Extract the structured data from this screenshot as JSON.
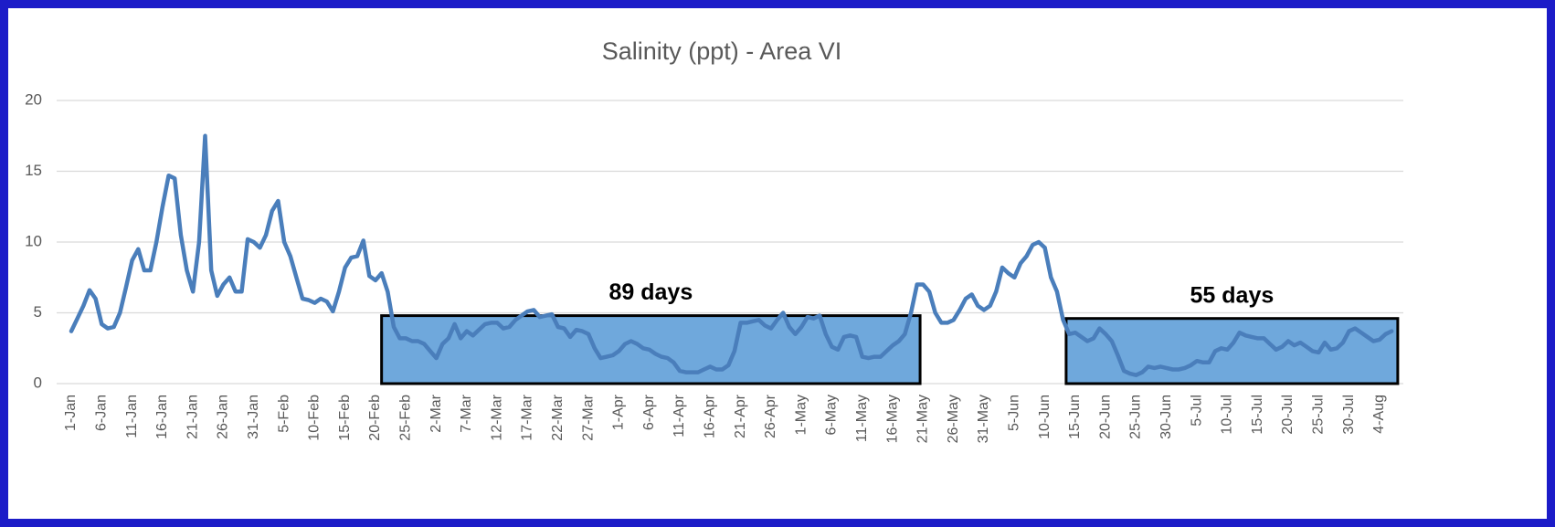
{
  "chart_data": {
    "type": "line",
    "title": "Salinity (ppt) - Area VI",
    "categories": [
      "1-Jan",
      null,
      null,
      null,
      null,
      "6-Jan",
      null,
      null,
      null,
      null,
      "11-Jan",
      null,
      null,
      null,
      null,
      "16-Jan",
      null,
      null,
      null,
      null,
      "21-Jan",
      null,
      null,
      null,
      null,
      "26-Jan",
      null,
      null,
      null,
      null,
      "31-Jan",
      null,
      null,
      null,
      null,
      "5-Feb",
      null,
      null,
      null,
      null,
      "10-Feb",
      null,
      null,
      null,
      null,
      "15-Feb",
      null,
      null,
      null,
      null,
      "20-Feb",
      null,
      null,
      null,
      null,
      "25-Feb",
      null,
      null,
      null,
      null,
      "2-Mar",
      null,
      null,
      null,
      null,
      "7-Mar",
      null,
      null,
      null,
      null,
      "12-Mar",
      null,
      null,
      null,
      null,
      "17-Mar",
      null,
      null,
      null,
      null,
      "22-Mar",
      null,
      null,
      null,
      null,
      "27-Mar",
      null,
      null,
      null,
      null,
      "1-Apr",
      null,
      null,
      null,
      null,
      "6-Apr",
      null,
      null,
      null,
      null,
      "11-Apr",
      null,
      null,
      null,
      null,
      "16-Apr",
      null,
      null,
      null,
      null,
      "21-Apr",
      null,
      null,
      null,
      null,
      "26-Apr",
      null,
      null,
      null,
      null,
      "1-May",
      null,
      null,
      null,
      null,
      "6-May",
      null,
      null,
      null,
      null,
      "11-May",
      null,
      null,
      null,
      null,
      "16-May",
      null,
      null,
      null,
      null,
      "21-May",
      null,
      null,
      null,
      null,
      "26-May",
      null,
      null,
      null,
      null,
      "31-May",
      null,
      null,
      null,
      null,
      "5-Jun",
      null,
      null,
      null,
      null,
      "10-Jun",
      null,
      null,
      null,
      null,
      "15-Jun",
      null,
      null,
      null,
      null,
      "20-Jun",
      null,
      null,
      null,
      null,
      "25-Jun",
      null,
      null,
      null,
      null,
      "30-Jun",
      null,
      null,
      null,
      null,
      "5-Jul",
      null,
      null,
      null,
      null,
      "10-Jul",
      null,
      null,
      null,
      null,
      "15-Jul",
      null,
      null,
      null,
      null,
      "20-Jul",
      null,
      null,
      null,
      null,
      "25-Jul",
      null,
      null,
      null,
      null,
      "30-Jul",
      null,
      null,
      null,
      null,
      "4-Aug",
      null,
      null
    ],
    "values": [
      3.7,
      4.6,
      5.5,
      6.6,
      6.0,
      4.2,
      3.9,
      4.0,
      5.0,
      6.8,
      8.7,
      9.5,
      8.0,
      8.0,
      10.0,
      12.5,
      14.7,
      14.5,
      10.5,
      8.0,
      6.5,
      10.0,
      17.5,
      8.0,
      6.2,
      7.0,
      7.5,
      6.5,
      6.5,
      10.2,
      10.0,
      9.6,
      10.5,
      12.2,
      12.9,
      10.0,
      9.0,
      7.5,
      6.0,
      5.9,
      5.7,
      6.0,
      5.8,
      5.1,
      6.5,
      8.2,
      8.9,
      9.0,
      10.1,
      7.6,
      7.3,
      7.8,
      6.5,
      4.0,
      3.2,
      3.2,
      3.0,
      3.0,
      2.8,
      2.3,
      1.8,
      2.8,
      3.2,
      4.2,
      3.2,
      3.7,
      3.4,
      3.8,
      4.2,
      4.3,
      4.3,
      3.9,
      4.0,
      4.5,
      4.8,
      5.1,
      5.2,
      4.7,
      4.8,
      4.9,
      4.0,
      3.9,
      3.3,
      3.8,
      3.7,
      3.5,
      2.5,
      1.8,
      1.9,
      2.0,
      2.3,
      2.8,
      3.0,
      2.8,
      2.5,
      2.4,
      2.1,
      1.9,
      1.8,
      1.5,
      0.9,
      0.8,
      0.8,
      0.8,
      1.0,
      1.2,
      1.0,
      1.0,
      1.3,
      2.3,
      4.3,
      4.3,
      4.4,
      4.5,
      4.1,
      3.9,
      4.5,
      5.0,
      4.0,
      3.5,
      4.0,
      4.7,
      4.6,
      4.8,
      3.5,
      2.6,
      2.4,
      3.3,
      3.4,
      3.3,
      1.9,
      1.8,
      1.9,
      1.9,
      2.3,
      2.7,
      3.0,
      3.5,
      5.0,
      7.0,
      7.0,
      6.5,
      5.0,
      4.3,
      4.3,
      4.5,
      5.2,
      6.0,
      6.3,
      5.5,
      5.2,
      5.5,
      6.5,
      8.2,
      7.8,
      7.5,
      8.5,
      9.0,
      9.8,
      10.0,
      9.6,
      7.5,
      6.5,
      4.5,
      3.5,
      3.6,
      3.3,
      3.0,
      3.2,
      3.9,
      3.5,
      3.0,
      2.0,
      0.9,
      0.7,
      0.6,
      0.8,
      1.2,
      1.1,
      1.2,
      1.1,
      1.0,
      1.0,
      1.1,
      1.3,
      1.6,
      1.5,
      1.5,
      2.3,
      2.5,
      2.4,
      2.9,
      3.6,
      3.4,
      3.3,
      3.2,
      3.2,
      2.8,
      2.4,
      2.6,
      3.0,
      2.7,
      2.9,
      2.6,
      2.3,
      2.2,
      2.9,
      2.4,
      2.5,
      2.9,
      3.7,
      3.9,
      3.6,
      3.3,
      3.0,
      3.1,
      3.5,
      3.7
    ],
    "color": "#4a7ebb",
    "ylim": [
      0,
      20
    ],
    "yticks": [
      0,
      5,
      10,
      15,
      20
    ],
    "grid": true,
    "annotations": [
      {
        "text": "89 days",
        "x": [
          51,
          139.5
        ],
        "y": [
          0,
          4.8
        ],
        "color": "#6fa8dc"
      },
      {
        "text": "55 days",
        "x": [
          163.5,
          218
        ],
        "y": [
          0,
          4.6
        ],
        "color": "#6fa8dc"
      }
    ]
  }
}
